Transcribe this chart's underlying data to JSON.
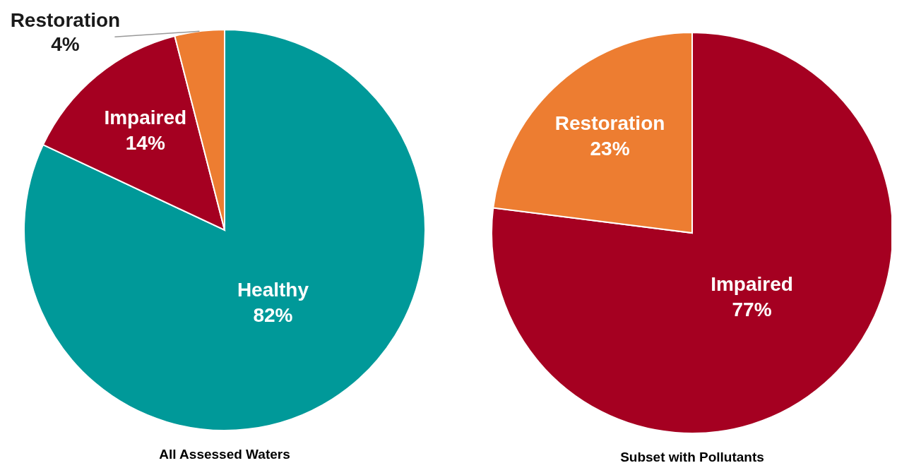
{
  "chart_data": [
    {
      "type": "pie",
      "title": "All Assessed Waters",
      "categories": [
        "Healthy",
        "Impaired",
        "Restoration"
      ],
      "values": [
        82,
        14,
        4
      ],
      "colors": [
        "#009999",
        "#a50021",
        "#ed7d31"
      ],
      "value_labels": [
        "82%",
        "14%",
        "4%"
      ]
    },
    {
      "type": "pie",
      "title": "Subset with Pollutants",
      "categories": [
        "Impaired",
        "Restoration"
      ],
      "values": [
        77,
        23
      ],
      "colors": [
        "#a50021",
        "#ed7d31"
      ],
      "value_labels": [
        "77%",
        "23%"
      ]
    }
  ]
}
